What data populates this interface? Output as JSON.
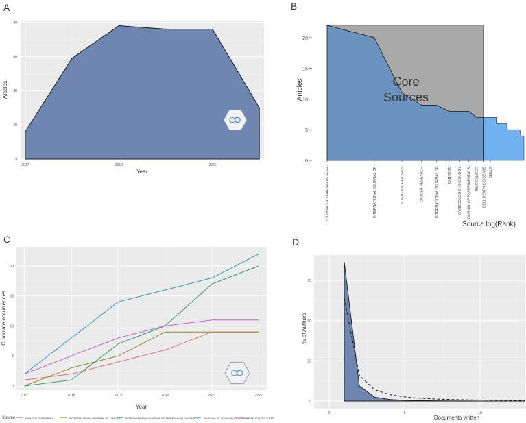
{
  "chart_data": [
    {
      "panel": "A",
      "type": "area",
      "xlabel": "Year",
      "ylabel": "Articles",
      "x": [
        2017,
        2018,
        2019,
        2020,
        2021,
        2022
      ],
      "y": [
        16,
        59,
        78,
        76,
        76,
        30
      ],
      "xlim": [
        2016.9,
        2022.1
      ],
      "ylim": [
        0,
        81
      ],
      "xticks": [
        2017,
        2019,
        2021
      ],
      "yticks": [
        0,
        20,
        40,
        60,
        80
      ],
      "fill": "#6f86b1",
      "grid": true,
      "logo": "bibliometrix-hex-logo"
    },
    {
      "panel": "B",
      "type": "area",
      "xlabel": "Source log(Rank)",
      "ylabel": "Articles",
      "annotation": [
        "Core",
        "Sources"
      ],
      "tick_labels": [
        "JOURNAL OF OVARIAN RESEAR -",
        "INTERNATIONAL JOURNAL OF -",
        "SCIENTIFIC REPORTS -",
        "CANCER RESEARCH -",
        "INTERNATIONAL JOURNAL OF -",
        "CANCERS -",
        "GYNECOLOGIC ONCOLOGY -",
        "JOURNAL OF EXPERIMENTAL & -",
        "BMC CANCER -",
        "CELL DEATH & DISEASE -",
        "CELLS -"
      ],
      "rank": [
        1,
        2,
        3,
        4,
        5,
        6,
        7,
        8,
        9,
        10,
        11,
        12,
        13,
        14,
        15,
        16,
        17,
        18
      ],
      "values": [
        22,
        20,
        11,
        9,
        9,
        8,
        8,
        8,
        7,
        7,
        7,
        6,
        6,
        5,
        5,
        5,
        4,
        4
      ],
      "core_count": 10,
      "ylim": [
        0,
        23
      ],
      "yticks": [
        0,
        5,
        10,
        15,
        20
      ],
      "core_fill": "#6a93bf",
      "other_fill": "#6fb2ef",
      "shade_fill": "#a9a9a9"
    },
    {
      "panel": "C",
      "type": "line",
      "xlabel": "Year",
      "ylabel": "Cumulate occurrences",
      "legend_title": "Source",
      "categories": [
        2017,
        2018,
        2019,
        2020,
        2021,
        2022
      ],
      "ylim": [
        0,
        22.5
      ],
      "yticks": [
        0,
        5,
        10,
        15,
        20
      ],
      "series": [
        {
          "name": "CANCER RESEARCH",
          "color": "#e0707a",
          "values": [
            1,
            2,
            4,
            6,
            9,
            9
          ]
        },
        {
          "name": "INTERNATIONAL JOURNAL OF CANCER",
          "color": "#8c8c1e",
          "values": [
            0,
            3,
            5,
            9,
            9,
            9
          ]
        },
        {
          "name": "INTERNATIONAL JOURNAL OF MOLECULAR SCIENCES",
          "color": "#2a9a6e",
          "values": [
            0,
            1,
            7,
            10,
            17,
            20
          ]
        },
        {
          "name": "JOURNAL OF OVARIAN RESEARCH",
          "color": "#2b9ac4",
          "values": [
            2,
            8,
            14,
            16,
            18,
            22
          ]
        },
        {
          "name": "SCIENTIFIC REPORTS",
          "color": "#cc5ed8",
          "values": [
            2,
            5,
            8,
            10,
            11,
            11
          ]
        }
      ],
      "grid": true,
      "logo": "bibliometrix-hex-logo"
    },
    {
      "panel": "D",
      "type": "area",
      "xlabel": "Documents written",
      "ylabel": "% of Authors",
      "x": [
        1,
        2,
        3,
        4,
        5,
        6,
        7,
        8,
        9,
        10,
        11,
        12,
        13
      ],
      "observed": [
        86.5,
        9.5,
        2.5,
        1.0,
        0.5,
        0.3,
        0.2,
        0.1,
        0.1,
        0.0,
        0.0,
        0.0,
        0.0
      ],
      "theoretical": [
        64,
        16,
        7.1,
        4,
        2.6,
        1.8,
        1.3,
        1.0,
        0.8,
        0.64,
        0.53,
        0.44,
        0.38
      ],
      "xlim": [
        -1,
        13
      ],
      "ylim": [
        0,
        90
      ],
      "xticks": [
        0,
        5,
        10
      ],
      "yticks": [
        0,
        25,
        50,
        75
      ],
      "fill": "#6f86b1"
    }
  ],
  "panels": {
    "a": "A",
    "b": "B",
    "c": "C",
    "d": "D"
  },
  "legend": {
    "title": "Source",
    "items": [
      "CANCER RESEARCH",
      "INTERNATIONAL JOURNAL OF CANCER",
      "INTERNATIONAL JOURNAL OF MOLECULAR SCIENCES",
      "JOURNAL OF OVARIAN RESEARCH",
      "SCIENTIFIC REPORTS"
    ]
  },
  "colors": {
    "panel_bg": "#ebebeb",
    "grid": "#ffffff",
    "axis_text": "#4d4d4d"
  }
}
